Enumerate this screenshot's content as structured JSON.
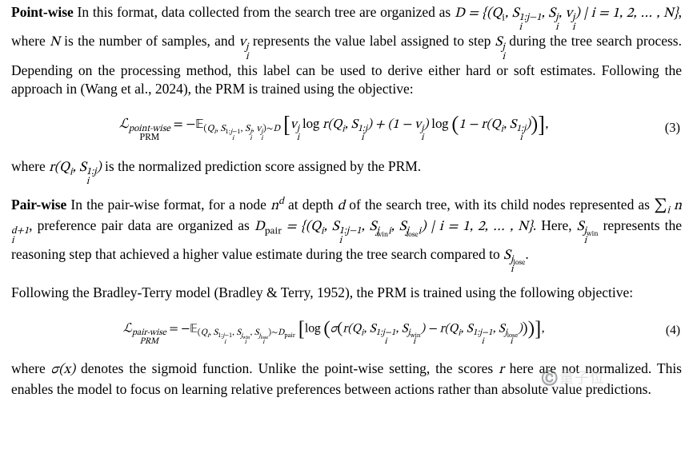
{
  "pointwise": {
    "heading": "Point-wise",
    "para1_a": " In this format, data collected from the search tree are organized as ",
    "D": "D",
    "eq_inline_1": " = {(Q",
    "eq_inline_1b": ", S",
    "eq_inline_1c": ", S",
    "eq_inline_1d": ", v",
    "eq_inline_1e": ") | i = 1, 2, … , N}",
    "para1_b": ", where ",
    "N": "N",
    "para1_c": " is the number of samples, and ",
    "v_ij": "v",
    "para1_d": " represents the value label assigned to step ",
    "S_ij": "S",
    "para1_e": " during the tree search process. Depending on the processing method, this label can be used to derive either hard or soft estimates. Following the approach in (Wang et al., 2024), the PRM is trained using the objective:"
  },
  "eq3": {
    "lhs": "ℒ",
    "sup": "point-wise",
    "sub": "PRM",
    "eq": " = −𝔼",
    "exp_sub": "(Qᵢ, Sᵢ¹:ʲ⁻¹, Sᵢʲ, vᵢʲ) ∼ D",
    "body": "[ vᵢʲ log r(Qᵢ, Sᵢ¹:ʲ) + (1 − vᵢʲ) log (1 − r(Qᵢ, Sᵢ¹:ʲ)) ],",
    "num": "(3)"
  },
  "post3": {
    "a": "where ",
    "r": "r(Q",
    "b": " is the normalized prediction score assigned by the PRM."
  },
  "pairwise": {
    "heading": "Pair-wise",
    "p_a": " In the pair-wise format, for a node ",
    "n_d": "n",
    "p_b": " at depth ",
    "d": "d",
    "p_c": " of the search tree, with its child nodes represented as ",
    "sum": "∑",
    "n_d1": "n",
    "p_d": ", preference pair data are organized as ",
    "Dpair": "D",
    "set": " = {(Q",
    "p_e": ". Here, ",
    "Swin": "S",
    "p_f": " represents the reasoning step that achieved a higher value estimate during the tree search compared to ",
    "Slose": "S",
    "dot": "."
  },
  "bt": {
    "text": "Following the Bradley-Terry model (Bradley & Terry, 1952), the PRM is trained using the following objective:"
  },
  "eq4": {
    "lhs": "ℒ",
    "sup": "pair-wise",
    "sub": "PRM",
    "eq": " = −𝔼",
    "exp_sub": "(Qᵢ, Sᵢ¹:ʲ⁻¹, Sᵢʲwin, Sᵢʲlose) ∼ Dpair",
    "body": "[ log ( σ( r(Qᵢ, Sᵢ¹:ʲ⁻¹, Sᵢʲwin) − r(Qᵢ, Sᵢ¹:ʲ⁻¹, Sᵢʲlose) ) ) ],",
    "num": "(4)"
  },
  "post4": {
    "a": "where ",
    "sig": "σ(x)",
    "b": " denotes the sigmoid function. Unlike the point-wise setting, the scores ",
    "r": "r",
    "c": " here are not normalized. This enables the model to focus on learning relative preferences between actions rather than absolute value predictions."
  },
  "watermark": "©️量子位"
}
